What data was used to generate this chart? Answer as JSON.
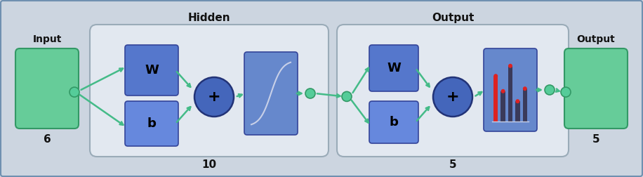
{
  "figsize": [
    9.16,
    2.52
  ],
  "dpi": 100,
  "bg_color": "#ccd5e0",
  "border_color": "#7090b0",
  "group_bg": "#e2e8f0",
  "group_border": "#9aabb8",
  "green_box_color": "#66cc99",
  "green_box_edge": "#339966",
  "W_color": "#5577cc",
  "W_edge": "#334499",
  "b_color": "#6688dd",
  "b_edge": "#334499",
  "sum_color": "#4466bb",
  "sum_edge": "#223377",
  "act_color": "#6688cc",
  "act_edge": "#334499",
  "arrow_color": "#44bb88",
  "dot_color": "#55cc99",
  "dot_edge": "#339966",
  "text_color": "#111111",
  "sigmoid_color": "#c8d0e8",
  "bar_color_dark": "#3a3a5a",
  "bar_color_red": "#dd2222",
  "input_label": "Input",
  "input_num": "6",
  "output_label": "Output",
  "output_num": "5",
  "hidden_label": "Hidden",
  "hidden_num": "10",
  "out_layer_label": "Output",
  "out_layer_num": "5",
  "W_text": "W",
  "b_text": "b",
  "sum_text": "+"
}
